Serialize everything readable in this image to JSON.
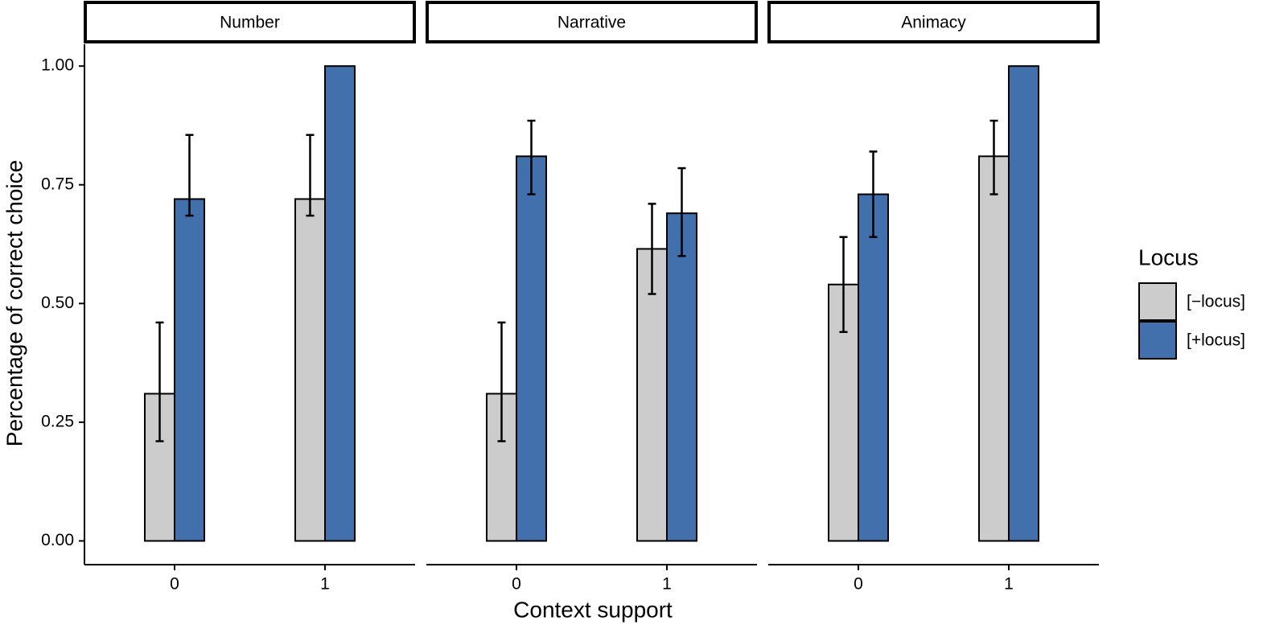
{
  "chart_data": {
    "type": "bar",
    "x_label": "Context support",
    "y_label": "Percentage of correct choice",
    "legend_title": "Locus",
    "facets": [
      "Number",
      "Narrative",
      "Animacy"
    ],
    "categories": [
      "0",
      "1"
    ],
    "ylim": [
      -0.05,
      1.046
    ],
    "yticks": [
      {
        "value": 0,
        "label": "0.00"
      },
      {
        "value": 0.25,
        "label": "0.25"
      },
      {
        "value": 0.5,
        "label": "0.50"
      },
      {
        "value": 0.75,
        "label": "0.75"
      },
      {
        "value": 1,
        "label": "1.00"
      }
    ],
    "series": [
      {
        "name": "[−locus]",
        "color": "#cccccc",
        "values": [
          [
            0.31,
            0.72
          ],
          [
            0.31,
            0.615
          ],
          [
            0.54,
            0.81
          ]
        ],
        "lower": [
          [
            0.21,
            0.685
          ],
          [
            0.21,
            0.52
          ],
          [
            0.44,
            0.73
          ]
        ],
        "upper": [
          [
            0.46,
            0.855
          ],
          [
            0.46,
            0.71
          ],
          [
            0.64,
            0.885
          ]
        ]
      },
      {
        "name": "[+locus]",
        "color": "#4170ad",
        "values": [
          [
            0.72,
            1
          ],
          [
            0.81,
            0.69
          ],
          [
            0.73,
            1
          ]
        ],
        "lower": [
          [
            0.685,
            null
          ],
          [
            0.73,
            0.6
          ],
          [
            0.64,
            null
          ]
        ],
        "upper": [
          [
            0.855,
            null
          ],
          [
            0.885,
            0.785
          ],
          [
            0.82,
            null
          ]
        ]
      }
    ]
  }
}
